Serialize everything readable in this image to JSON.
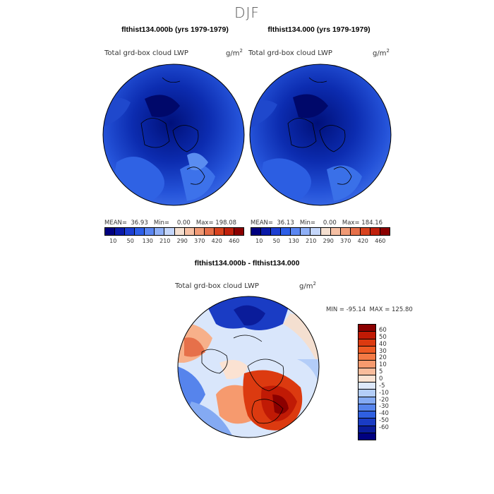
{
  "figure": {
    "season": "DJF"
  },
  "panels": [
    {
      "title": "flthist134.000b (yrs 1979-1979)",
      "variable": "Total grd-box cloud LWP",
      "units_base": "g/m",
      "units_exp": "2",
      "stats_text": "MEAN=  36.93   Min=    0.00   Max= 198.08",
      "colorbar_labels": [
        "10",
        "50",
        "130",
        "210",
        "290",
        "370",
        "420",
        "460"
      ],
      "colorbar_colors": [
        "#00007f",
        "#0a1aa8",
        "#1d3fd2",
        "#2e5fe8",
        "#5b87f2",
        "#8fb0f7",
        "#c4d6fa",
        "#f4dfd0",
        "#f6c0a4",
        "#f09a75",
        "#e6704a",
        "#d8431f",
        "#c0200c",
        "#8b0000"
      ]
    },
    {
      "title": "flthist134.000 (yrs 1979-1979)",
      "variable": "Total grd-box cloud LWP",
      "units_base": "g/m",
      "units_exp": "2",
      "stats_text": "MEAN=  36.13   Min=    0.00   Max= 184.16",
      "colorbar_labels": [
        "10",
        "50",
        "130",
        "210",
        "290",
        "370",
        "420",
        "460"
      ],
      "colorbar_colors": [
        "#00007f",
        "#0a1aa8",
        "#1d3fd2",
        "#2e5fe8",
        "#5b87f2",
        "#8fb0f7",
        "#c4d6fa",
        "#f4dfd0",
        "#f6c0a4",
        "#f09a75",
        "#e6704a",
        "#d8431f",
        "#c0200c",
        "#8b0000"
      ]
    }
  ],
  "diff": {
    "title": "flthist134.000b - flthist134.000",
    "variable": "Total grd-box cloud LWP",
    "units_base": "g/m",
    "units_exp": "2",
    "stats_text": "MIN = -95.14  MAX = 125.80",
    "colorbar_labels": [
      "60",
      "50",
      "40",
      "30",
      "20",
      "10",
      "5",
      "0",
      "-5",
      "-10",
      "-20",
      "-30",
      "-40",
      "-50",
      "-60"
    ],
    "colorbar_colors": [
      "#8b0000",
      "#c01a05",
      "#dc3a10",
      "#ee5a24",
      "#f47a45",
      "#f69a6e",
      "#f9bc9c",
      "#fbe2d2",
      "#dde8fb",
      "#b3cdf8",
      "#84aaf3",
      "#5684ec",
      "#2f5fe0",
      "#1a3cc4",
      "#0a1c9a",
      "#000080"
    ]
  }
}
